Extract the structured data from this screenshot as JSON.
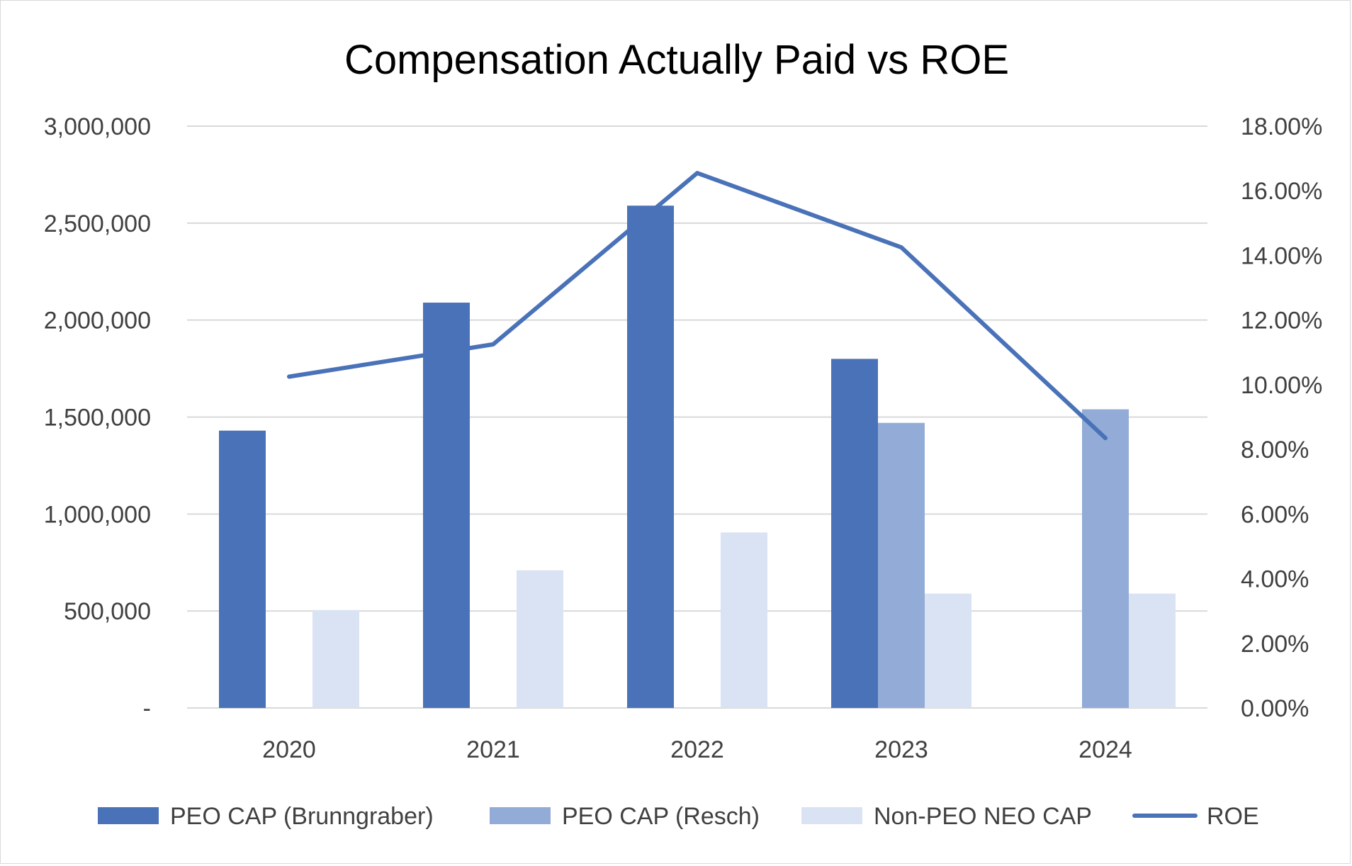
{
  "chart_data": {
    "type": "bar",
    "title": "Compensation Actually Paid vs ROE",
    "categories": [
      "2020",
      "2021",
      "2022",
      "2023",
      "2024"
    ],
    "series": [
      {
        "name": "PEO CAP (Brunngraber)",
        "type": "bar",
        "axis": "left",
        "color": "#4a72b8",
        "values": [
          1430000,
          2090000,
          2590000,
          1800000,
          null
        ]
      },
      {
        "name": "PEO CAP (Resch)",
        "type": "bar",
        "axis": "left",
        "color": "#92acd7",
        "values": [
          null,
          null,
          null,
          1470000,
          1540000
        ]
      },
      {
        "name": "Non-PEO NEO CAP",
        "type": "bar",
        "axis": "left",
        "color": "#dae3f3",
        "values": [
          505000,
          710000,
          905000,
          590000,
          590000
        ]
      },
      {
        "name": "ROE",
        "type": "line",
        "axis": "right",
        "color": "#4a72b8",
        "values": [
          0.1025,
          0.1125,
          0.1655,
          0.1425,
          0.0835
        ]
      }
    ],
    "left_axis": {
      "ylim": [
        0,
        3000000
      ],
      "ticks": [
        0,
        500000,
        1000000,
        1500000,
        2000000,
        2500000,
        3000000
      ],
      "tick_labels": [
        "-",
        "500,000",
        "1,000,000",
        "1,500,000",
        "2,000,000",
        "2,500,000",
        "3,000,000"
      ]
    },
    "right_axis": {
      "ylim": [
        0,
        0.18
      ],
      "ticks": [
        0,
        0.02,
        0.04,
        0.06,
        0.08,
        0.1,
        0.12,
        0.14,
        0.16,
        0.18
      ],
      "tick_labels": [
        "0.00%",
        "2.00%",
        "4.00%",
        "6.00%",
        "8.00%",
        "10.00%",
        "12.00%",
        "14.00%",
        "16.00%",
        "18.00%"
      ]
    },
    "xlabel": "",
    "ylabel": "",
    "grid": true,
    "legend_position": "bottom"
  },
  "colors": {
    "grid": "#d9d9d9",
    "text": "#404040",
    "title": "#000000"
  }
}
